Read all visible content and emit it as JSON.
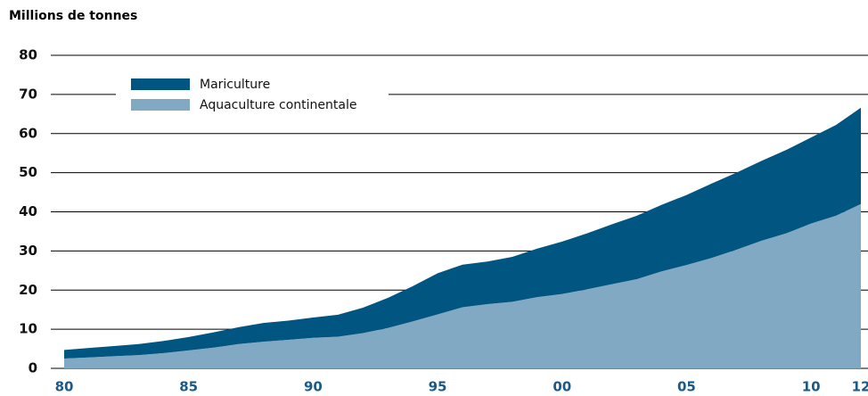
{
  "chart_data": {
    "type": "stacked-area",
    "y_axis_title": "Millions de tonnes",
    "x": [
      1980,
      1981,
      1982,
      1983,
      1984,
      1985,
      1986,
      1987,
      1988,
      1989,
      1990,
      1991,
      1992,
      1993,
      1994,
      1995,
      1996,
      1997,
      1998,
      1999,
      2000,
      2001,
      2002,
      2003,
      2004,
      2005,
      2006,
      2007,
      2008,
      2009,
      2010,
      2011,
      2012
    ],
    "series": [
      {
        "name": "Aquaculture continentale",
        "color": "#82a9c3",
        "values": [
          2.5,
          2.8,
          3.1,
          3.4,
          3.9,
          4.6,
          5.3,
          6.2,
          6.8,
          7.3,
          7.8,
          8.1,
          9.0,
          10.3,
          12.0,
          13.8,
          15.6,
          16.4,
          17.0,
          18.2,
          19.0,
          20.2,
          21.5,
          22.8,
          24.8,
          26.4,
          28.2,
          30.3,
          32.6,
          34.5,
          37.0,
          39.0,
          42.0
        ]
      },
      {
        "name": "Mariculture",
        "color": "#005581",
        "values": [
          2.2,
          2.4,
          2.6,
          2.8,
          3.1,
          3.4,
          3.9,
          4.3,
          4.8,
          4.9,
          5.2,
          5.6,
          6.5,
          7.7,
          9.0,
          10.5,
          10.9,
          10.9,
          11.5,
          12.4,
          13.4,
          14.3,
          15.3,
          16.2,
          17.0,
          17.9,
          19.0,
          19.7,
          20.4,
          21.3,
          22.0,
          23.2,
          24.6
        ]
      }
    ],
    "xlim": [
      1980,
      2012
    ],
    "xticks": [
      {
        "value": 1980,
        "label": "80"
      },
      {
        "value": 1985,
        "label": "85"
      },
      {
        "value": 1990,
        "label": "90"
      },
      {
        "value": 1995,
        "label": "95"
      },
      {
        "value": 2000,
        "label": "00"
      },
      {
        "value": 2005,
        "label": "05"
      },
      {
        "value": 2010,
        "label": "10"
      },
      {
        "value": 2012,
        "label": "12"
      }
    ],
    "ylim": [
      0,
      80
    ],
    "yticks": [
      0,
      10,
      20,
      30,
      40,
      50,
      60,
      70,
      80
    ],
    "grid": true
  }
}
